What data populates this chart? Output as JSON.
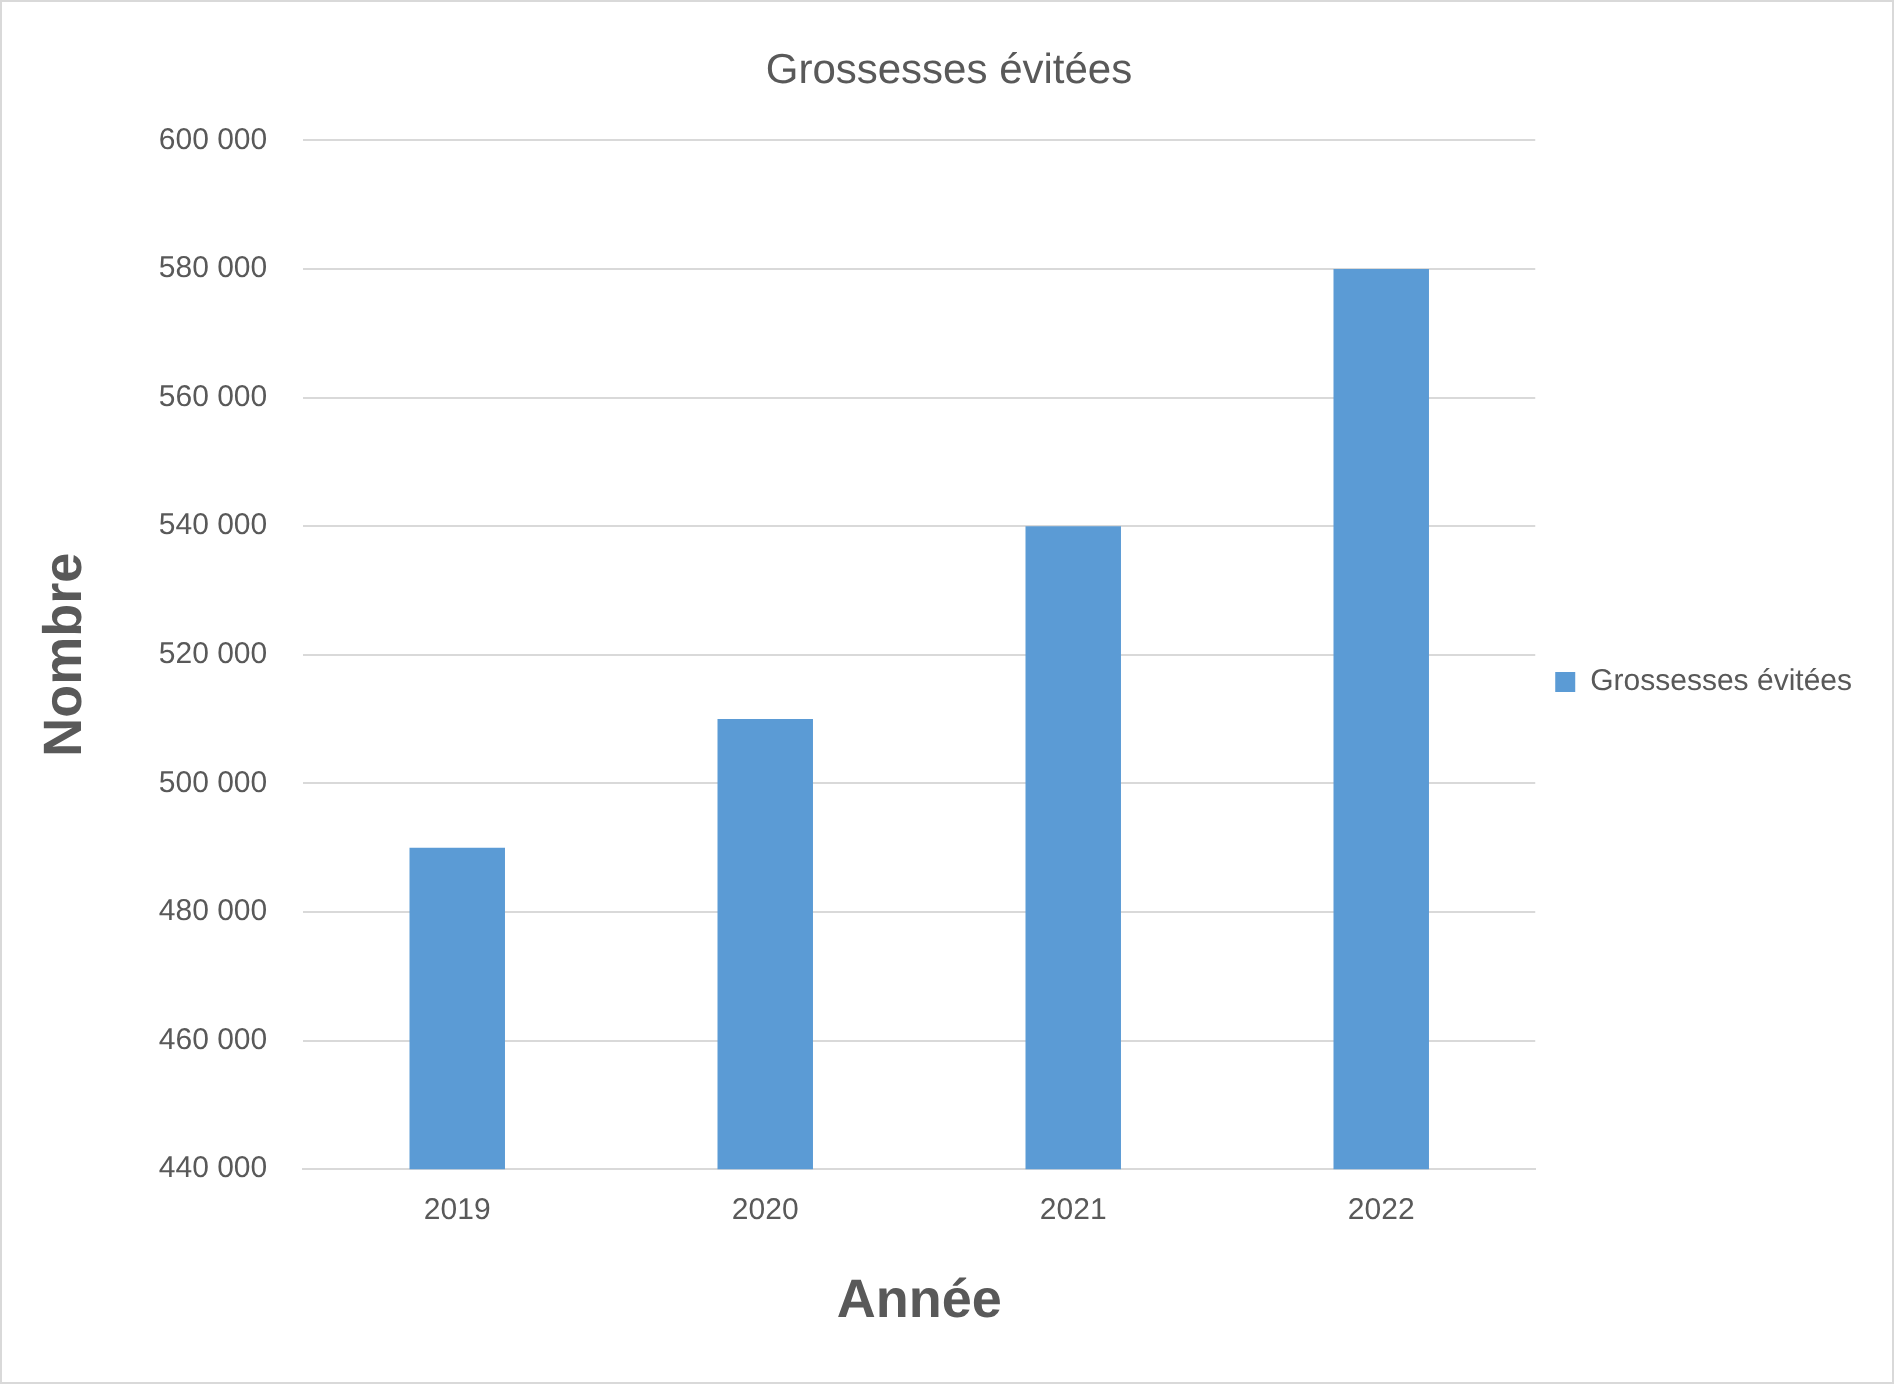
{
  "chart_data": {
    "type": "bar",
    "title": "Grossesses évitées",
    "xlabel": "Année",
    "ylabel": "Nombre",
    "categories": [
      "2019",
      "2020",
      "2021",
      "2022"
    ],
    "series": [
      {
        "name": "Grossesses évitées",
        "color": "#5b9bd5",
        "values": [
          490000,
          510000,
          540000,
          580000
        ]
      }
    ],
    "ylim": [
      440000,
      600000
    ],
    "yticks": [
      {
        "value": 440000,
        "label": "440 000"
      },
      {
        "value": 460000,
        "label": "460 000"
      },
      {
        "value": 480000,
        "label": "480 000"
      },
      {
        "value": 500000,
        "label": "500 000"
      },
      {
        "value": 520000,
        "label": "520 000"
      },
      {
        "value": 540000,
        "label": "540 000"
      },
      {
        "value": 560000,
        "label": "560 000"
      },
      {
        "value": 580000,
        "label": "580 000"
      },
      {
        "value": 600000,
        "label": "600 000"
      }
    ],
    "grid": "y",
    "legend": "right"
  }
}
